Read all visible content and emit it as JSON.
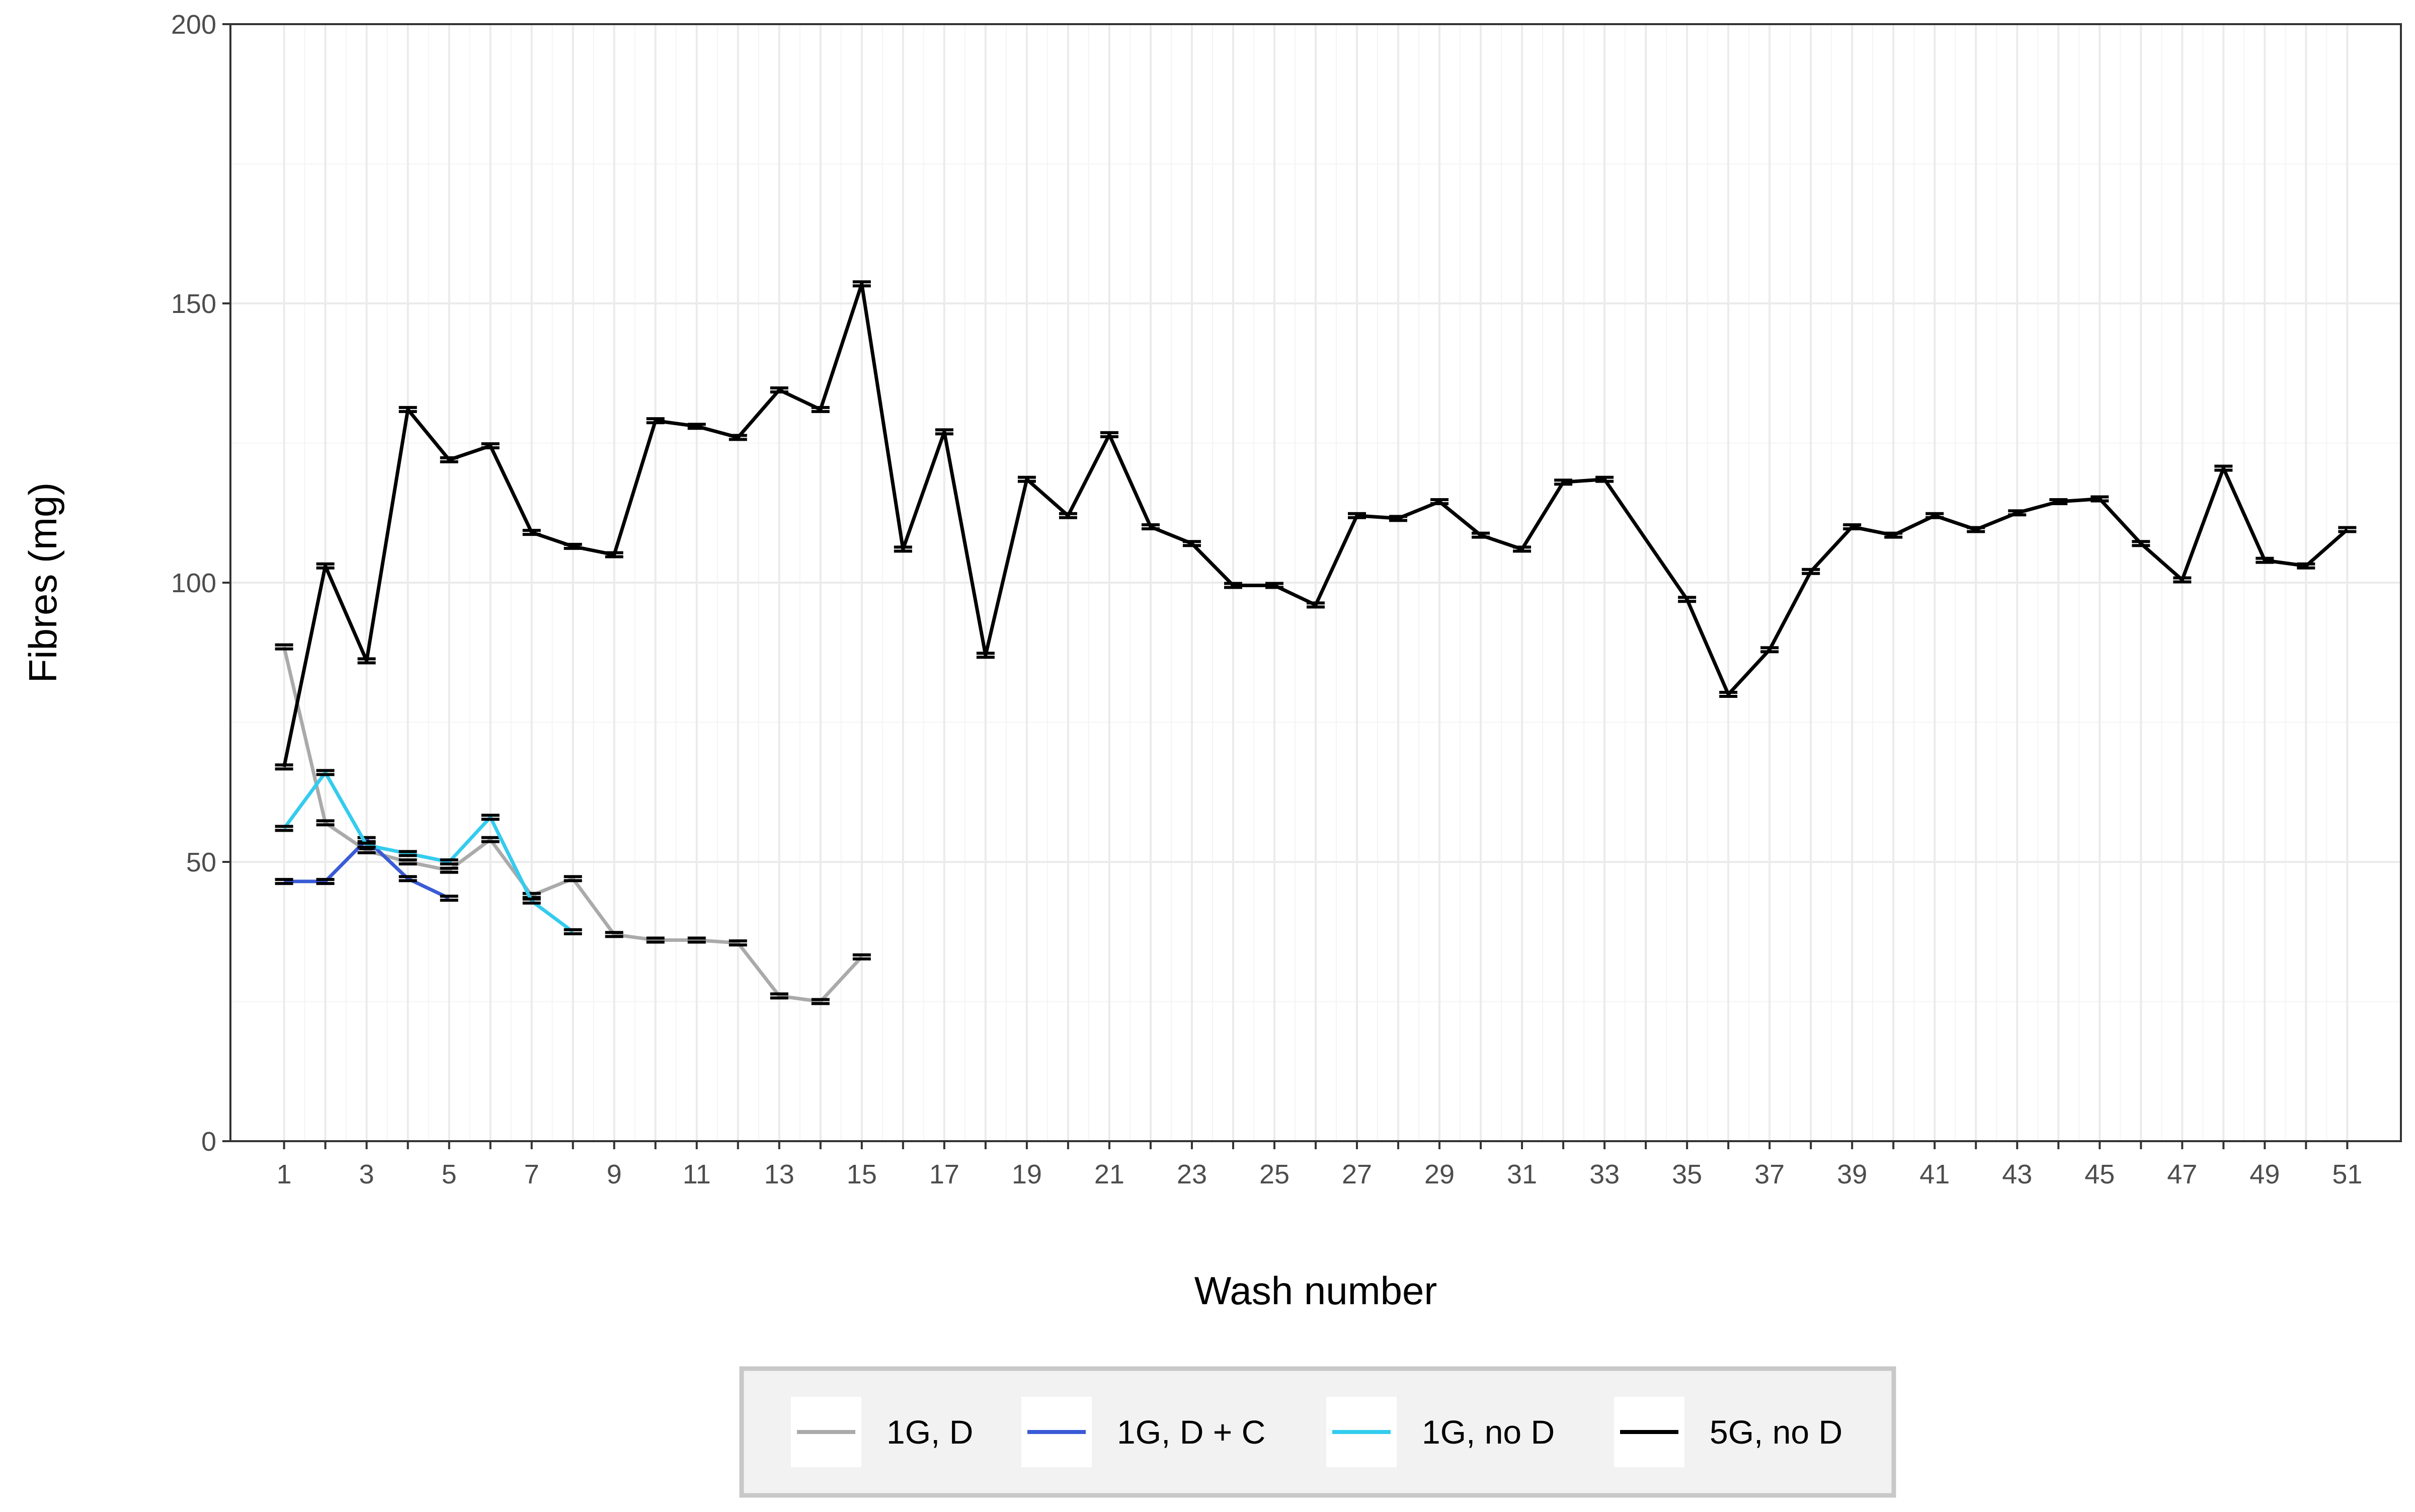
{
  "chart_data": {
    "type": "line",
    "title": "",
    "xlabel": "Wash number",
    "ylabel": "Fibres (mg)",
    "xlim": [
      1,
      51
    ],
    "ylim": [
      0,
      200
    ],
    "x_tick_labels": [
      "1",
      "3",
      "5",
      "7",
      "9",
      "11",
      "13",
      "15",
      "17",
      "19",
      "21",
      "23",
      "25",
      "27",
      "29",
      "31",
      "33",
      "35",
      "37",
      "39",
      "41",
      "43",
      "45",
      "47",
      "49",
      "51"
    ],
    "y_tick_labels": [
      "0",
      "50",
      "100",
      "150",
      "200"
    ],
    "grid": true,
    "legend_position": "bottom",
    "error_bars": true,
    "series": [
      {
        "name": "1G, D",
        "color": "#aaaaaa",
        "x": [
          1,
          2,
          3,
          4,
          5,
          6,
          7,
          8,
          9,
          10,
          11,
          12,
          13,
          14,
          15
        ],
        "y": [
          88.5,
          57,
          52,
          50,
          48.5,
          54,
          44,
          47,
          37,
          36,
          36,
          35.5,
          26,
          25,
          33
        ]
      },
      {
        "name": "1G, D + C",
        "color": "#3a5bd6",
        "x": [
          1,
          2,
          3,
          4,
          5
        ],
        "y": [
          46.5,
          46.5,
          54,
          47,
          43.5
        ]
      },
      {
        "name": "1G, no D",
        "color": "#33ccee",
        "x": [
          1,
          2,
          3,
          4,
          5,
          6,
          7,
          8
        ],
        "y": [
          56,
          66,
          53,
          51.5,
          50,
          58,
          43,
          37.5
        ]
      },
      {
        "name": "5G, no D",
        "color": "#000000",
        "x": [
          1,
          2,
          3,
          4,
          5,
          6,
          7,
          8,
          9,
          10,
          11,
          12,
          13,
          14,
          15,
          16,
          17,
          18,
          19,
          20,
          21,
          22,
          23,
          24,
          25,
          26,
          27,
          28,
          29,
          30,
          31,
          32,
          33,
          35,
          36,
          37,
          38,
          39,
          40,
          41,
          42,
          43,
          44,
          45,
          46,
          47,
          48,
          49,
          50,
          51
        ],
        "y": [
          67,
          103,
          86,
          131,
          122,
          124.5,
          109,
          106.5,
          105,
          129,
          128,
          126,
          134.5,
          131,
          153.5,
          106,
          127,
          87,
          118.5,
          112,
          126.5,
          110,
          107,
          99.5,
          99.5,
          96,
          112,
          111.5,
          114.5,
          108.5,
          106,
          118,
          118.5,
          97,
          80,
          88,
          102,
          110,
          108.5,
          112,
          109.5,
          112.5,
          114.5,
          115,
          107,
          100.5,
          120.5,
          104,
          103,
          109.5
        ]
      }
    ]
  }
}
